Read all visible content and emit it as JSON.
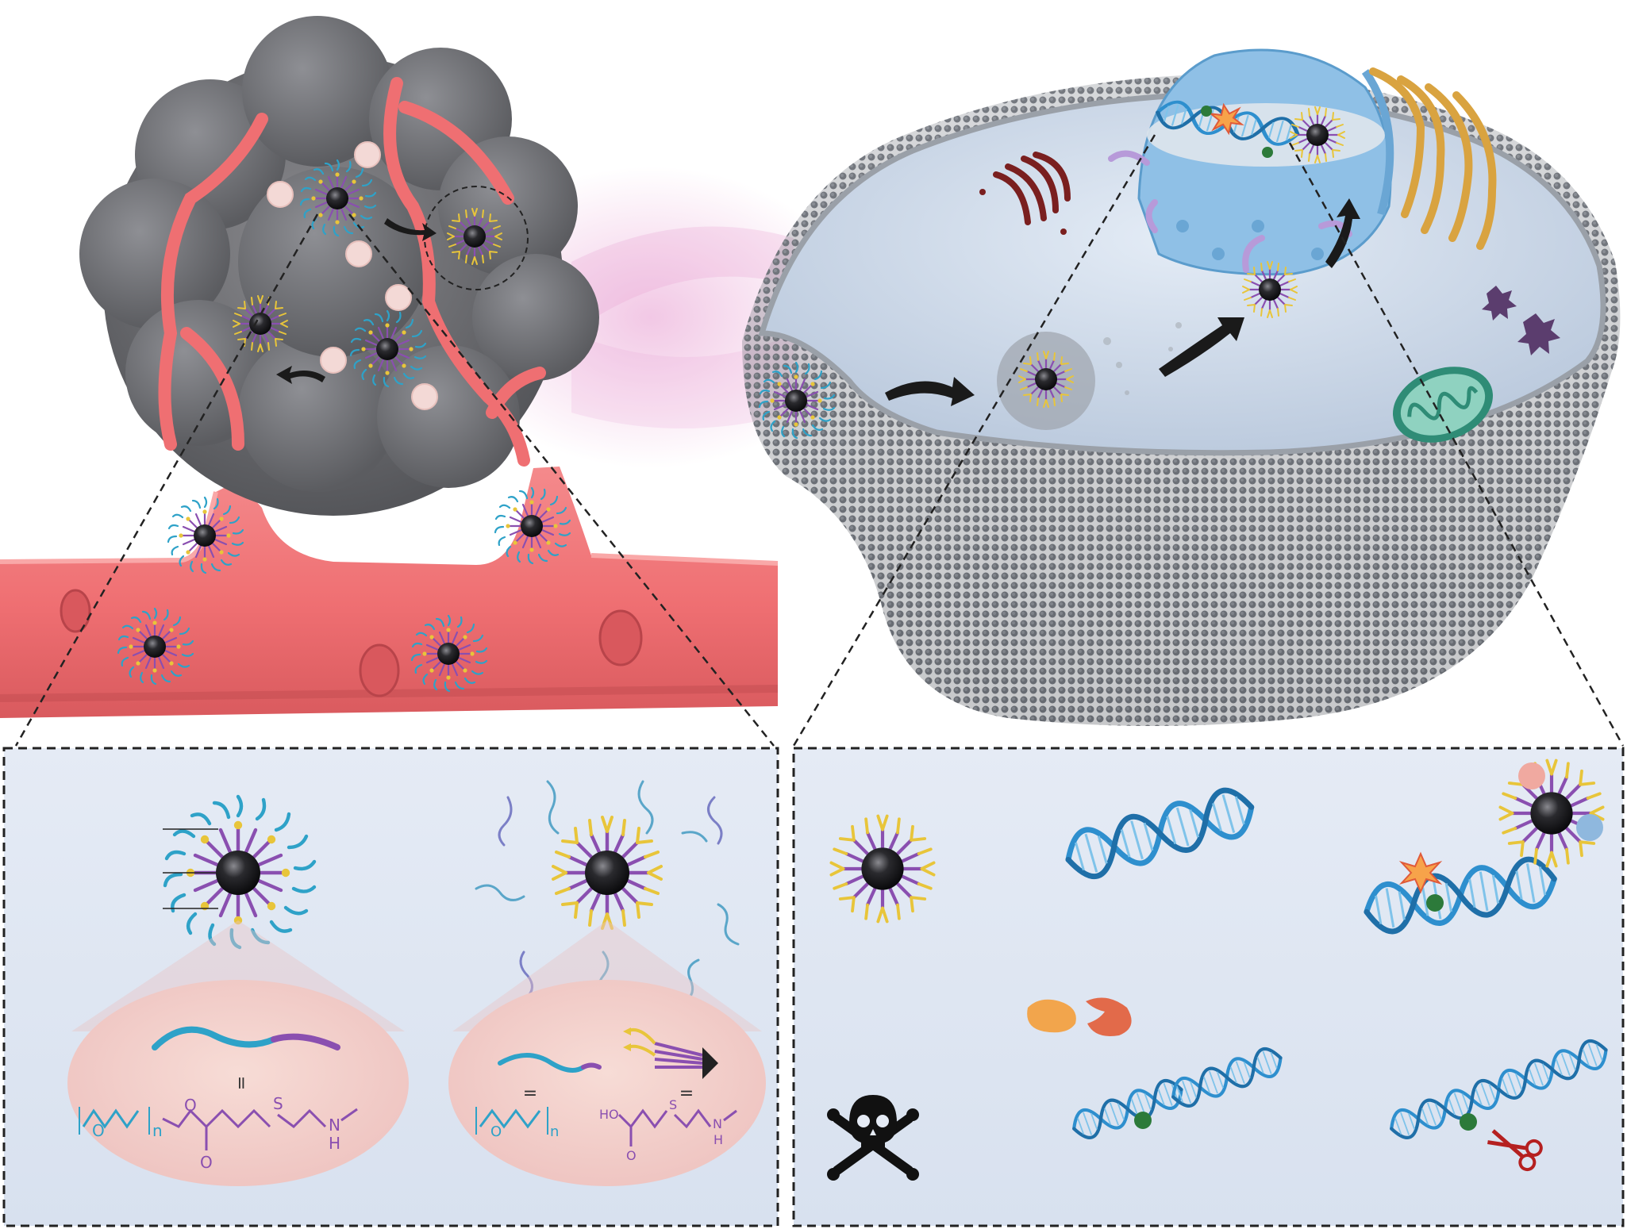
{
  "colors": {
    "tumor": "#6e6e72",
    "vessel": "#ef6f72",
    "vessel_dark": "#d95a5e",
    "cell_membrane": "#7d8187",
    "cell_interior": "#c9d6e6",
    "panel_bg": "#dfe7f3",
    "dna": "#2e8fce",
    "peg_cyan": "#2ea2c8",
    "polymer_purple": "#8a4fb0",
    "ligand_yellow": "#e8c53a",
    "core": "#2a2a2e",
    "glow": "#e79bd0",
    "dash": "#222222"
  },
  "icons": [
    "tumor-spheroid-icon",
    "blood-vessel-icon",
    "peg-shielded-nanoparticle-icon",
    "deshielded-nanoparticle-icon",
    "cell-icon",
    "nucleus-icon",
    "dna-helix-icon",
    "mitochondrion-icon",
    "golgi-icon",
    "endoplasmic-reticulum-icon",
    "skull-crossbones-icon",
    "scissors-icon",
    "dna-damage-burst-icon",
    "protein-icon",
    "arrow-icon"
  ],
  "chemistry": {
    "left": {
      "label_n": "n",
      "label_o": "O",
      "label_carbonyl_o": "O",
      "label_s": "S",
      "label_n_amine": "N",
      "label_h": "H",
      "equals": "="
    },
    "right": {
      "label_n": "n",
      "label_o": "O",
      "label_ho": "HO",
      "label_carbonyl_o": "O",
      "label_s": "S",
      "label_n_amine": "N",
      "label_h": "H",
      "equals_left": "=",
      "equals_right": "="
    }
  }
}
